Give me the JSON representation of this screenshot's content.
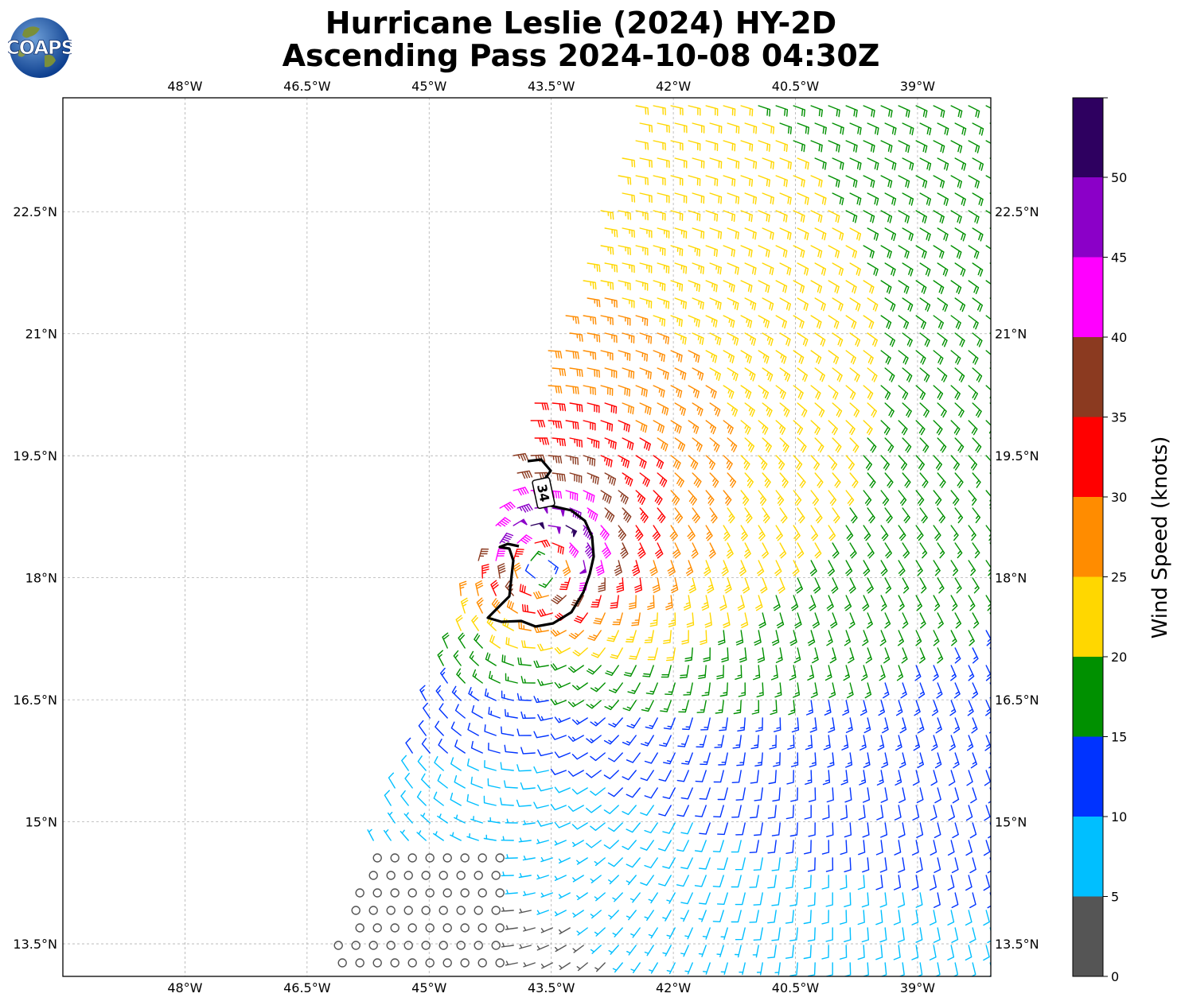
{
  "title_line1": "Hurricane Leslie (2024) HY-2D",
  "title_line2": "Ascending Pass 2024-10-08 04:30Z",
  "logo_text": "COAPS",
  "lon_ticks": [
    "48°W",
    "46.5°W",
    "45°W",
    "43.5°W",
    "42°W",
    "40.5°W",
    "39°W"
  ],
  "lat_ticks": [
    "22.5°N",
    "21°N",
    "19.5°N",
    "18°N",
    "16.5°N",
    "15°N",
    "13.5°N"
  ],
  "contour_label": "34",
  "colorbar": {
    "label": "Wind Speed (knots)",
    "ticks": [
      "0",
      "5",
      "10",
      "15",
      "20",
      "25",
      "30",
      "35",
      "40",
      "45",
      "50"
    ],
    "colors": [
      "#555555",
      "#00bfff",
      "#0033ff",
      "#009000",
      "#ffd700",
      "#ff8c00",
      "#ff0000",
      "#8b3a20",
      "#ff00ff",
      "#8b00c8",
      "#2e0060"
    ]
  },
  "map": {
    "lon_range": [
      -49.5,
      -38.1
    ],
    "lat_range": [
      13.1,
      23.9
    ],
    "storm_center": {
      "lon": -43.6,
      "lat": 18.2
    },
    "rmw_deg": 0.55
  }
}
